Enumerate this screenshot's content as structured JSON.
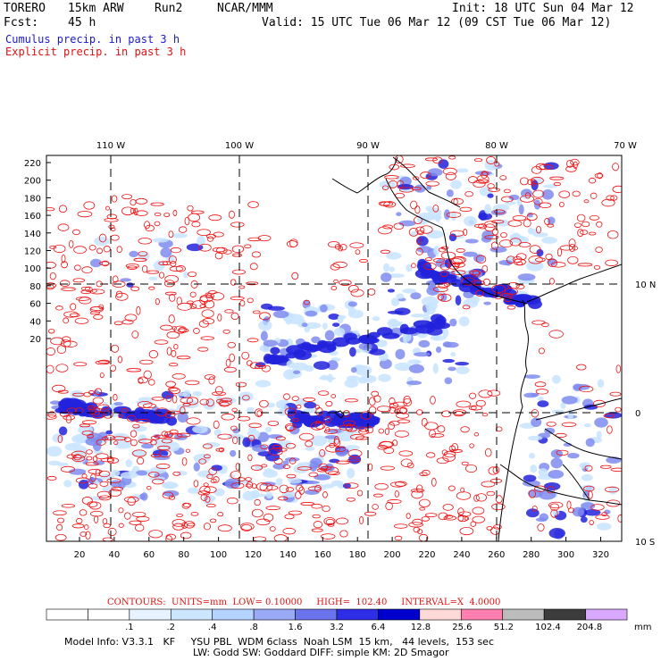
{
  "header": {
    "model": "TORERO",
    "resolution": "15km ARW",
    "run": "Run2",
    "org": "NCAR/MMM",
    "init": "Init: 18 UTC Sun 04 Mar 12",
    "fcst_label": "Fcst:",
    "fcst_value": "45 h",
    "valid": "Valid: 15 UTC Tue 06 Mar 12 (09 CST Tue 06 Mar 12)",
    "line_cumulus": "Cumulus precip. in past 3 h",
    "line_explicit": "Explicit precip. in past 3 h"
  },
  "map": {
    "top_lon_labels": [
      "110 W",
      "100 W",
      "90 W",
      "80 W",
      "70 W"
    ],
    "left_y_ticks": [
      "220",
      "200",
      "180",
      "160",
      "140",
      "120",
      "100",
      "80",
      "60",
      "40",
      "20"
    ],
    "bottom_x_ticks": [
      "20",
      "40",
      "60",
      "80",
      "100",
      "120",
      "140",
      "160",
      "180",
      "200",
      "220",
      "240",
      "260",
      "280",
      "300",
      "320"
    ],
    "right_lat_labels": [
      "10 N",
      "0",
      "10 S"
    ],
    "colors": {
      "cumulus_light": "#c8e4ff",
      "cumulus_mid": "#7f8cf0",
      "cumulus_dark": "#2222dd",
      "explicit": "#ee1111"
    }
  },
  "contours": {
    "text": "CONTOURS:  UNITS=mm  LOW= 0.10000     HIGH=  102.40     INTERVAL=X  4.0000"
  },
  "colorbar": {
    "levels": [
      ".1",
      ".2",
      ".4",
      ".8",
      "1.6",
      "3.2",
      "6.4",
      "12.8",
      "25.6",
      "51.2",
      "102.4",
      "204.8"
    ],
    "colors": [
      "#ffffff",
      "#ffffff",
      "#e6f3ff",
      "#cde6ff",
      "#b4d4ff",
      "#9aaaf5",
      "#6b74ee",
      "#2e2ee6",
      "#0000cc",
      "#ffd8d8",
      "#ff80b0",
      "#bcbcbc",
      "#3c3c3c",
      "#d8a8ff"
    ],
    "unit": "mm"
  },
  "footer": {
    "line1": "Model Info: V3.3.1   KF     YSU PBL  WDM 6class  Noah LSM  15 km,   44 levels,  153 sec",
    "line2": "LW: Godd SW: Goddard DIFF: simple KM: 2D Smagor"
  }
}
